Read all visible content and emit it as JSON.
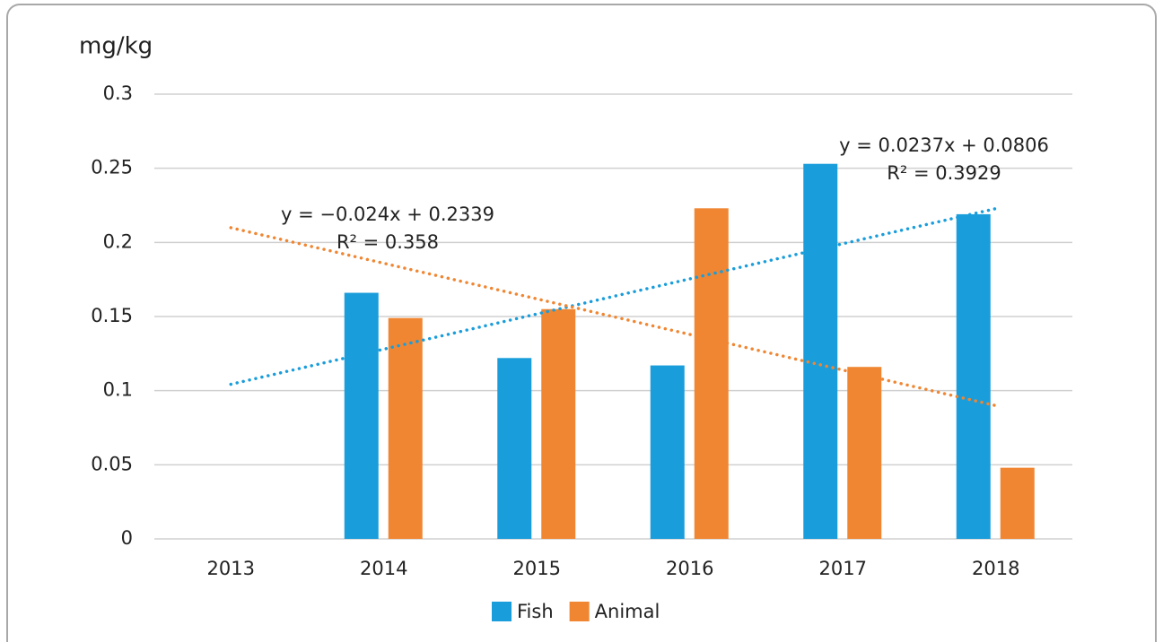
{
  "chart_data": {
    "type": "bar",
    "y_label": "mg/kg",
    "categories": [
      "2013",
      "2014",
      "2015",
      "2016",
      "2017",
      "2018"
    ],
    "series": [
      {
        "name": "Fish",
        "color": "#1a9ddb",
        "values": [
          null,
          0.166,
          0.122,
          0.117,
          0.253,
          0.219
        ]
      },
      {
        "name": "Animal",
        "color": "#f08632",
        "values": [
          null,
          0.149,
          0.155,
          0.223,
          0.116,
          0.048
        ]
      }
    ],
    "trendlines": [
      {
        "series": 0,
        "slope": 0.0237,
        "intercept": 0.0806,
        "equation": "y = 0.0237x + 0.0806",
        "r2": "R² = 0.3929"
      },
      {
        "series": 1,
        "slope": -0.024,
        "intercept": 0.2339,
        "equation": "y = −0.024x + 0.2339",
        "r2": "R² = 0.358"
      }
    ],
    "ylim": [
      0,
      0.3
    ],
    "yticks": [
      0,
      0.05,
      0.1,
      0.15,
      0.2,
      0.25,
      0.3
    ],
    "grid": true,
    "legend": "bottom"
  }
}
